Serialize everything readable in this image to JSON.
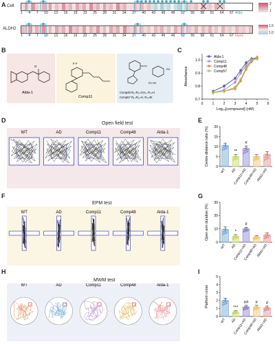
{
  "panels": {
    "A": "A",
    "B": "B",
    "C": "C",
    "D": "D",
    "E": "E",
    "F": "F",
    "G": "G",
    "H": "H",
    "I": "I"
  },
  "heatmap": {
    "rows": [
      {
        "label": "Cell",
        "extra_label": "Alda-",
        "colors": [
          "#f1d6d8",
          "#e7b8be",
          "#f3dfe1",
          "#d99aa5",
          "#eed0d4",
          "#f6e7e9",
          "#e4b0b8",
          "#f0d5d9",
          "#dba1ab",
          "#f4e2e4",
          "#e9bdc4",
          "#f2dadd",
          "#d993a0",
          "#f0d1d6",
          "#e6b6bd",
          "#f5e4e6",
          "#dea8b1",
          "#efcdd2",
          "#e2acb5",
          "#f3dde0",
          "#d6909d",
          "#eccbd0",
          "#e3b1b9",
          "#f4e0e3",
          "#dca4ae",
          "#efd0d5",
          "#e8bac1",
          "#f5e6e8",
          "#d98f9c",
          "#edc8ce",
          "#e5b4bb",
          "#f2dcdf",
          "#f1d9dc",
          "#ebc3c9",
          "#f0d4d8",
          "#e6b8bf",
          "#f2dbde",
          "#eac1c7",
          "#cfe4e6",
          "#b8d9dd",
          "#e0eef0",
          "#a6d0d6",
          "#d4e7ea",
          "#bcdcdf",
          "#eaf3f4",
          "#c4e0e3",
          "#b0d5da",
          "#dcecee",
          "#ccd8db",
          "#e2ccd0",
          "#f0d3d7",
          "#e9bfc6",
          "#f4e1e3",
          "#e6b5bc",
          "#f1d7db",
          "#eccbd0",
          "#f5e5e7",
          "#e3b0b8",
          "#f2dadd",
          "#edc7cd",
          "#ffffff",
          "#ffffff",
          "#ffffff",
          "#ffffff",
          "#ffffff",
          "#ffffff",
          "#ffffff",
          "#ffffff"
        ]
      },
      {
        "label": "ALDH2",
        "extra_label": "blank",
        "colors": [
          "#e8bcc3",
          "#f1d8db",
          "#dda4ae",
          "#f3dee1",
          "#e4b2ba",
          "#efcfd4",
          "#d996a2",
          "#f2dbde",
          "#e7b9c0",
          "#f5e5e7",
          "#dfa9b2",
          "#eecdd2",
          "#e2aeb7",
          "#f4e1e4",
          "#d88f9c",
          "#edc8ce",
          "#e6b7be",
          "#f1d8dc",
          "#dda5af",
          "#f3dfe2",
          "#e4b3bb",
          "#efd0d5",
          "#da9aa5",
          "#f2dcdf",
          "#e8bbc2",
          "#f5e6e8",
          "#dfaab3",
          "#edcbd0",
          "#e1acb5",
          "#f4e2e5",
          "#d7919d",
          "#eccad0",
          "#f0d6da",
          "#e5b4bb",
          "#f3dde0",
          "#e9bfc6",
          "#f1d9dc",
          "#ecc6cc",
          "#f4e3e5",
          "#e6b8bf",
          "#efd2d6",
          "#e3b0b8",
          "#f2dbde",
          "#e9c0c7",
          "#f5e6e8",
          "#e1adb6",
          "#f0d4d8",
          "#e7bac1",
          "#f3dfe2",
          "#ebc4ca",
          "#f1d8dc",
          "#e4b2ba",
          "#f4e2e4",
          "#e8bcc3",
          "#f0d5d9",
          "#e2afb7",
          "#f2dcdf",
          "#eac2c8",
          "#f5e5e7",
          "#e5b5bc",
          "#f1d7db",
          "#edc9ce",
          "#f4e1e3",
          "#e7b9c0",
          "#f0d3d7",
          "#eccbd0",
          "#f3dee1",
          "#e8bdc4"
        ]
      }
    ],
    "ticks": [
      "1",
      "4",
      "7",
      "10",
      "13",
      "16",
      "19",
      "22",
      "25",
      "28",
      "31",
      "34",
      "37",
      "40",
      "43",
      "46",
      "49",
      "52",
      "55",
      "58",
      "61",
      "64",
      "67"
    ],
    "legend1": {
      "top": "2",
      "bottom": "1"
    },
    "legend2": {
      "top": "1.5",
      "bottom": "1.0"
    }
  },
  "structures": {
    "alda": {
      "name": "Alda-1"
    },
    "comp11": {
      "name": "Comp11"
    },
    "comp48": {
      "line1": "Comp48 R₁=R₂=CH₃, R₃=H",
      "line2": "Comp57 R₁=R₂=H,    R₃=Et"
    }
  },
  "dose_curve": {
    "xlabel": "Log₁₀[compound] (nM)",
    "ylabel": "Absorbance",
    "xlim": [
      0,
      6
    ],
    "ylim": [
      0.7,
      1.05
    ],
    "yticks": [
      "0.7",
      "0.8",
      "0.9",
      "1.0"
    ],
    "xticks": [
      "0",
      "1",
      "2",
      "3",
      "4",
      "5",
      "6"
    ]
  },
  "chart_data": [
    {
      "type": "line",
      "xlabel": "Log₁₀[compound] (nM)",
      "ylabel": "Absorbance",
      "xlim": [
        0,
        6
      ],
      "ylim": [
        0.7,
        1.05
      ],
      "series": [
        {
          "name": "Alda-1",
          "color": "#4a5bb0",
          "x": [
            1,
            2,
            3,
            3.5,
            4,
            4.5,
            5
          ],
          "y": [
            0.76,
            0.8,
            0.86,
            0.92,
            0.98,
            1.01,
            1.02
          ]
        },
        {
          "name": "Comp11",
          "color": "#b48acb",
          "x": [
            1,
            2,
            3,
            3.5,
            4,
            4.5,
            5
          ],
          "y": [
            0.75,
            0.77,
            0.83,
            0.9,
            0.96,
            1.0,
            1.02
          ]
        },
        {
          "name": "Comp48",
          "color": "#e07a5a",
          "x": [
            1,
            2,
            3,
            3.5,
            4,
            4.5,
            5
          ],
          "y": [
            0.75,
            0.76,
            0.78,
            0.84,
            0.93,
            0.99,
            1.02
          ]
        },
        {
          "name": "Comp57",
          "color": "#a3c04a",
          "x": [
            1,
            2,
            3,
            3.5,
            4,
            4.5,
            5
          ],
          "y": [
            0.75,
            0.76,
            0.79,
            0.85,
            0.94,
            1.0,
            1.01
          ]
        }
      ]
    },
    {
      "type": "bar",
      "ylabel": "Centre distance ratio (%)",
      "categories": [
        "WT",
        "AD",
        "Comp11+AD",
        "Comp48+AD",
        "Alda1+AD"
      ],
      "values": [
        10.5,
        5,
        9,
        5,
        6
      ],
      "errors": [
        1.2,
        1,
        1.3,
        1,
        1.5
      ],
      "ylim": [
        0,
        20
      ],
      "yticks": [
        "0",
        "5",
        "10",
        "15",
        "20"
      ],
      "colors": [
        "#6aa3d8",
        "#c8d86a",
        "#8b84c9",
        "#f0c36a",
        "#e58e8e"
      ],
      "sig": [
        "",
        "**",
        "#",
        "",
        ""
      ]
    },
    {
      "type": "bar",
      "ylabel": "Open arm duration (%)",
      "categories": [
        "WT",
        "AD",
        "Comp11+AD",
        "Comp48+AD",
        "Alda1+AD"
      ],
      "values": [
        9.5,
        4.5,
        10,
        4,
        5.5
      ],
      "errors": [
        2,
        1.2,
        1.2,
        1,
        1.5
      ],
      "ylim": [
        0,
        30
      ],
      "yticks": [
        "0",
        "10",
        "20",
        "30"
      ],
      "colors": [
        "#6aa3d8",
        "#c8d86a",
        "#8b84c9",
        "#f0c36a",
        "#e58e8e"
      ],
      "sig": [
        "",
        "*",
        "#",
        "",
        ""
      ]
    },
    {
      "type": "bar",
      "ylabel": "Platform cross",
      "categories": [
        "WT",
        "AD",
        "Comp11+AD",
        "Comp48+AD",
        "Alda1+AD"
      ],
      "values": [
        2,
        0.6,
        1.2,
        1.2,
        1.1
      ],
      "errors": [
        0.3,
        0.15,
        0.2,
        0.2,
        0.2
      ],
      "ylim": [
        0,
        5
      ],
      "yticks": [
        "0",
        "1",
        "2",
        "3",
        "4",
        "5"
      ],
      "colors": [
        "#6aa3d8",
        "#c8d86a",
        "#8b84c9",
        "#f0c36a",
        "#e58e8e"
      ],
      "sig": [
        "",
        "***",
        "##",
        "#",
        "#"
      ]
    }
  ],
  "tests": {
    "open_field": {
      "title": "Open field test",
      "groups": [
        "WT",
        "AD",
        "Comp11",
        "Comp48",
        "Alda-1"
      ]
    },
    "epm": {
      "title": "EPM test",
      "groups": [
        "WT",
        "AD",
        "Comp11",
        "Comp48",
        "Alda-1"
      ]
    },
    "mwm": {
      "title": "MWM test",
      "groups": [
        "WT",
        "AD",
        "Comp11",
        "Comp48",
        "Alda-1"
      ]
    }
  }
}
